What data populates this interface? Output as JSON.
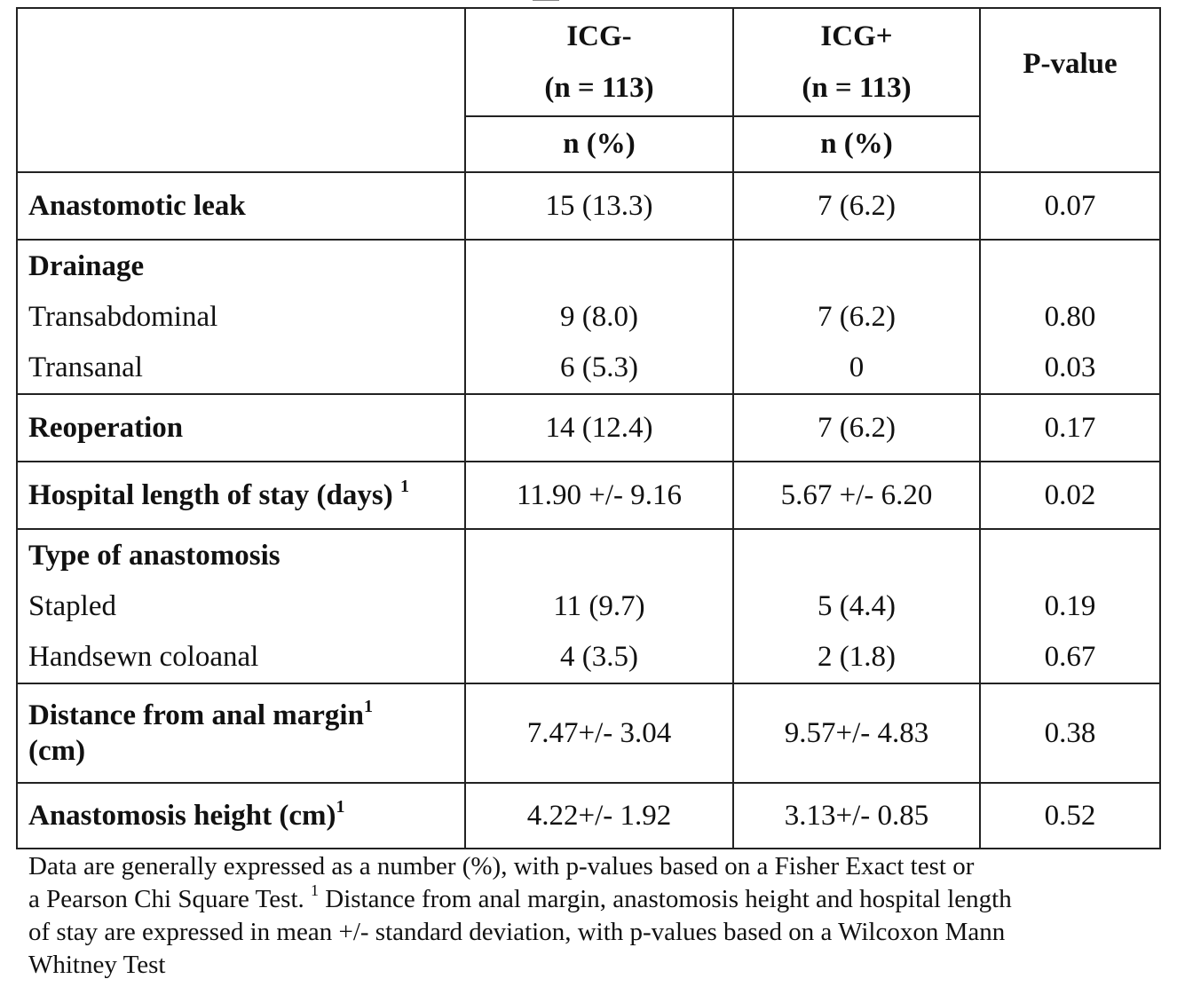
{
  "header": {
    "col1_title": "ICG-",
    "col1_n": "(n = 113)",
    "col2_title": "ICG+",
    "col2_n": "(n = 113)",
    "pvalue": "P-value",
    "sub1": "n (%)",
    "sub2": "n (%)"
  },
  "rows": {
    "leak": {
      "label": "Anastomotic leak",
      "icg_minus": "15 (13.3)",
      "icg_plus": "7 (6.2)",
      "p": "0.07"
    },
    "drainage": {
      "label": "Drainage",
      "items": [
        {
          "label": "Transabdominal",
          "icg_minus": "9 (8.0)",
          "icg_plus": "7 (6.2)",
          "p": "0.80"
        },
        {
          "label": "Transanal",
          "icg_minus": "6 (5.3)",
          "icg_plus": "0",
          "p": "0.03"
        }
      ]
    },
    "reop": {
      "label": "Reoperation",
      "icg_minus": "14 (12.4)",
      "icg_plus": "7 (6.2)",
      "p": "0.17"
    },
    "stay": {
      "label": "Hospital length of stay (days)",
      "sup": "1",
      "icg_minus": "11.90 +/- 9.16",
      "icg_plus": "5.67 +/- 6.20",
      "p": "0.02"
    },
    "type": {
      "label": "Type of anastomosis",
      "items": [
        {
          "label": "Stapled",
          "icg_minus": "11 (9.7)",
          "icg_plus": "5 (4.4)",
          "p": "0.19"
        },
        {
          "label": "Handsewn coloanal",
          "icg_minus": "4 (3.5)",
          "icg_plus": "2 (1.8)",
          "p": "0.67"
        }
      ]
    },
    "distance": {
      "label_line1": "Distance from anal margin",
      "sup": "1",
      "label_line2": "(cm)",
      "icg_minus": "7.47+/- 3.04",
      "icg_plus": "9.57+/- 4.83",
      "p": "0.38"
    },
    "height": {
      "label": "Anastomosis height (cm)",
      "sup": "1",
      "icg_minus": "4.22+/- 1.92",
      "icg_plus": "3.13+/- 0.85",
      "p": "0.52"
    }
  },
  "footnote": {
    "line1": "Data are generally expressed as a number (%), with p-values based on a Fisher Exact test or",
    "line2_pre": "a Pearson Chi Square Test. ",
    "line2_sup": "1",
    "line2_post": " Distance from anal margin, anastomosis height and hospital length",
    "line3": "of stay are expressed in mean +/- standard deviation, with p-values based on a Wilcoxon Mann",
    "line4": "Whitney Test"
  }
}
